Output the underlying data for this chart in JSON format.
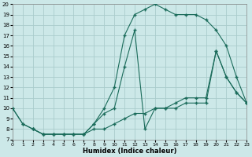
{
  "xlabel": "Humidex (Indice chaleur)",
  "bg_color": "#cce8e8",
  "line_color": "#1a6b5a",
  "grid_color": "#aacccc",
  "ylim": [
    7,
    20
  ],
  "xlim": [
    0,
    23
  ],
  "curve1_x": [
    0,
    1,
    2,
    3,
    4,
    5,
    6,
    7,
    8,
    9,
    10,
    11,
    12,
    13,
    14,
    15,
    16,
    17,
    18,
    19,
    20,
    21,
    22,
    23
  ],
  "curve1_y": [
    10,
    8.5,
    8,
    7.5,
    7.5,
    7.5,
    7.5,
    7.5,
    8.5,
    10,
    12,
    17,
    19,
    19.5,
    20,
    19.5,
    19,
    19,
    19,
    18.5,
    17.5,
    16,
    13,
    10.5
  ],
  "curve2_x": [
    0,
    1,
    2,
    3,
    4,
    5,
    6,
    7,
    8,
    9,
    10,
    11,
    12,
    13,
    14,
    15,
    16,
    17,
    18,
    19,
    20,
    21,
    22,
    23
  ],
  "curve2_y": [
    10,
    8.5,
    8,
    7.5,
    7.5,
    7.5,
    7.5,
    7.5,
    8.5,
    9.5,
    10,
    14,
    17.5,
    8,
    10,
    10,
    10.5,
    11,
    11,
    11,
    15.5,
    13,
    11.5,
    10.5
  ],
  "curve3_x": [
    2,
    3,
    4,
    5,
    6,
    7,
    8,
    9,
    10,
    11,
    12,
    13,
    14,
    15,
    16,
    17,
    18,
    19,
    20,
    21,
    22,
    23
  ],
  "curve3_y": [
    8,
    7.5,
    7.5,
    7.5,
    7.5,
    7.5,
    8,
    8,
    8.5,
    9,
    9.5,
    9.5,
    10,
    10,
    10,
    10.5,
    10.5,
    10.5,
    15.5,
    13,
    11.5,
    10.5
  ]
}
